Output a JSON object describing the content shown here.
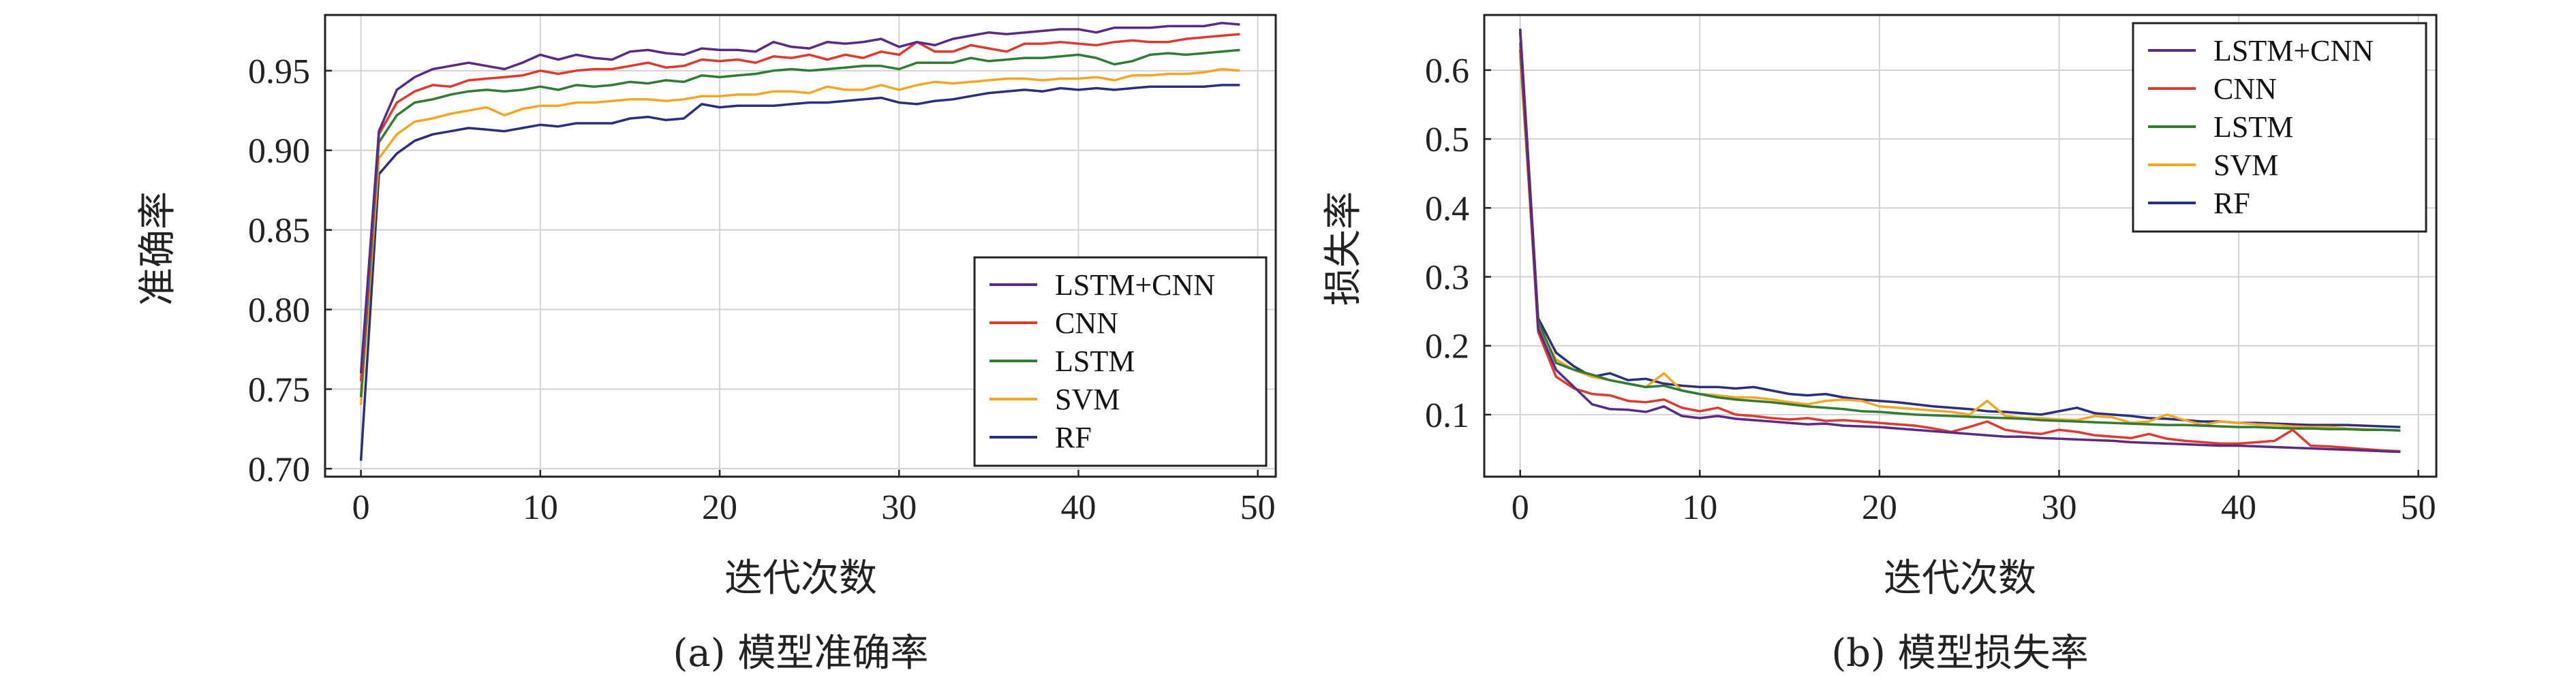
{
  "chart_data": [
    {
      "type": "line",
      "caption": "(a) 模型准确率",
      "xlabel": "迭代次数",
      "ylabel": "准确率",
      "xlim": [
        -2,
        51
      ],
      "ylim": [
        0.695,
        0.985
      ],
      "xticks": [
        0,
        10,
        20,
        30,
        40,
        50
      ],
      "xtick_labels": [
        "0",
        "10",
        "20",
        "30",
        "40",
        "50"
      ],
      "yticks": [
        0.7,
        0.75,
        0.8,
        0.85,
        0.9,
        0.95
      ],
      "ytick_labels": [
        "0.70",
        "0.75",
        "0.80",
        "0.85",
        "0.90",
        "0.95"
      ],
      "grid": true,
      "legend_position": "lower-right",
      "x": [
        0,
        1,
        2,
        3,
        4,
        5,
        6,
        7,
        8,
        9,
        10,
        11,
        12,
        13,
        14,
        15,
        16,
        17,
        18,
        19,
        20,
        21,
        22,
        23,
        24,
        25,
        26,
        27,
        28,
        29,
        30,
        31,
        32,
        33,
        34,
        35,
        36,
        37,
        38,
        39,
        40,
        41,
        42,
        43,
        44,
        45,
        46,
        47,
        48,
        49
      ],
      "series": [
        {
          "name": "LSTM+CNN",
          "color": "#5b2a86",
          "values": [
            0.76,
            0.912,
            0.938,
            0.946,
            0.951,
            0.953,
            0.955,
            0.953,
            0.951,
            0.955,
            0.96,
            0.957,
            0.96,
            0.958,
            0.957,
            0.962,
            0.963,
            0.961,
            0.96,
            0.964,
            0.963,
            0.963,
            0.962,
            0.968,
            0.965,
            0.964,
            0.968,
            0.967,
            0.968,
            0.97,
            0.965,
            0.968,
            0.966,
            0.97,
            0.972,
            0.974,
            0.973,
            0.974,
            0.975,
            0.976,
            0.976,
            0.974,
            0.977,
            0.977,
            0.977,
            0.978,
            0.978,
            0.978,
            0.98,
            0.979
          ]
        },
        {
          "name": "CNN",
          "color": "#e03a2f",
          "values": [
            0.755,
            0.91,
            0.93,
            0.937,
            0.941,
            0.94,
            0.944,
            0.945,
            0.946,
            0.947,
            0.95,
            0.948,
            0.95,
            0.951,
            0.951,
            0.953,
            0.955,
            0.952,
            0.953,
            0.957,
            0.956,
            0.957,
            0.955,
            0.959,
            0.958,
            0.96,
            0.957,
            0.96,
            0.958,
            0.962,
            0.96,
            0.968,
            0.962,
            0.962,
            0.966,
            0.964,
            0.962,
            0.967,
            0.967,
            0.968,
            0.967,
            0.966,
            0.968,
            0.969,
            0.968,
            0.968,
            0.97,
            0.971,
            0.972,
            0.973
          ]
        },
        {
          "name": "LSTM",
          "color": "#2e7d32",
          "values": [
            0.745,
            0.905,
            0.922,
            0.93,
            0.932,
            0.935,
            0.937,
            0.938,
            0.937,
            0.938,
            0.94,
            0.938,
            0.941,
            0.94,
            0.941,
            0.943,
            0.942,
            0.944,
            0.943,
            0.947,
            0.946,
            0.947,
            0.948,
            0.95,
            0.951,
            0.95,
            0.951,
            0.952,
            0.953,
            0.953,
            0.951,
            0.955,
            0.955,
            0.955,
            0.958,
            0.956,
            0.957,
            0.958,
            0.958,
            0.959,
            0.96,
            0.958,
            0.954,
            0.956,
            0.96,
            0.961,
            0.96,
            0.961,
            0.962,
            0.963
          ]
        },
        {
          "name": "SVM",
          "color": "#f5a623",
          "values": [
            0.74,
            0.895,
            0.91,
            0.918,
            0.92,
            0.923,
            0.925,
            0.927,
            0.922,
            0.926,
            0.928,
            0.928,
            0.93,
            0.93,
            0.931,
            0.932,
            0.932,
            0.931,
            0.932,
            0.934,
            0.934,
            0.935,
            0.935,
            0.937,
            0.937,
            0.936,
            0.94,
            0.938,
            0.938,
            0.941,
            0.938,
            0.941,
            0.943,
            0.942,
            0.943,
            0.944,
            0.945,
            0.945,
            0.944,
            0.945,
            0.945,
            0.946,
            0.944,
            0.947,
            0.947,
            0.948,
            0.948,
            0.949,
            0.951,
            0.95
          ]
        },
        {
          "name": "RF",
          "color": "#2b2f7e",
          "values": [
            0.705,
            0.885,
            0.898,
            0.906,
            0.91,
            0.912,
            0.914,
            0.913,
            0.912,
            0.914,
            0.916,
            0.915,
            0.917,
            0.917,
            0.917,
            0.92,
            0.921,
            0.919,
            0.92,
            0.929,
            0.927,
            0.928,
            0.928,
            0.928,
            0.929,
            0.93,
            0.93,
            0.931,
            0.932,
            0.933,
            0.93,
            0.929,
            0.931,
            0.932,
            0.934,
            0.936,
            0.937,
            0.938,
            0.937,
            0.939,
            0.938,
            0.939,
            0.938,
            0.939,
            0.94,
            0.94,
            0.94,
            0.94,
            0.941,
            0.941
          ]
        }
      ]
    },
    {
      "type": "line",
      "caption": "(b) 模型损失率",
      "xlabel": "迭代次数",
      "ylabel": "损失率",
      "xlim": [
        -2,
        51
      ],
      "ylim": [
        0.01,
        0.68
      ],
      "xticks": [
        0,
        10,
        20,
        30,
        40,
        50
      ],
      "xtick_labels": [
        "0",
        "10",
        "20",
        "30",
        "40",
        "50"
      ],
      "yticks": [
        0.1,
        0.2,
        0.3,
        0.4,
        0.5,
        0.6
      ],
      "ytick_labels": [
        "0.1",
        "0.2",
        "0.3",
        "0.4",
        "0.5",
        "0.6"
      ],
      "grid": true,
      "legend_position": "upper-right",
      "x": [
        0,
        1,
        2,
        3,
        4,
        5,
        6,
        7,
        8,
        9,
        10,
        11,
        12,
        13,
        14,
        15,
        16,
        17,
        18,
        19,
        20,
        21,
        22,
        23,
        24,
        25,
        26,
        27,
        28,
        29,
        30,
        31,
        32,
        33,
        34,
        35,
        36,
        37,
        38,
        39,
        40,
        41,
        42,
        43,
        44,
        45,
        46,
        47,
        48,
        49
      ],
      "series": [
        {
          "name": "LSTM+CNN",
          "color": "#5b2a86",
          "values": [
            0.655,
            0.225,
            0.165,
            0.14,
            0.115,
            0.108,
            0.107,
            0.104,
            0.112,
            0.098,
            0.095,
            0.098,
            0.094,
            0.092,
            0.09,
            0.088,
            0.086,
            0.087,
            0.084,
            0.083,
            0.082,
            0.08,
            0.078,
            0.076,
            0.074,
            0.072,
            0.07,
            0.068,
            0.068,
            0.066,
            0.065,
            0.064,
            0.063,
            0.062,
            0.06,
            0.059,
            0.058,
            0.057,
            0.056,
            0.055,
            0.055,
            0.054,
            0.053,
            0.052,
            0.051,
            0.05,
            0.049,
            0.048,
            0.047,
            0.046
          ]
        },
        {
          "name": "CNN",
          "color": "#e03a2f",
          "values": [
            0.64,
            0.22,
            0.155,
            0.138,
            0.13,
            0.128,
            0.12,
            0.118,
            0.122,
            0.11,
            0.105,
            0.11,
            0.1,
            0.098,
            0.095,
            0.093,
            0.095,
            0.091,
            0.092,
            0.09,
            0.088,
            0.086,
            0.084,
            0.08,
            0.075,
            0.082,
            0.09,
            0.078,
            0.074,
            0.072,
            0.078,
            0.075,
            0.07,
            0.068,
            0.066,
            0.072,
            0.065,
            0.062,
            0.06,
            0.058,
            0.058,
            0.06,
            0.062,
            0.078,
            0.055,
            0.054,
            0.052,
            0.05,
            0.048,
            0.047
          ]
        },
        {
          "name": "LSTM",
          "color": "#2e7d32",
          "values": [
            0.63,
            0.235,
            0.175,
            0.165,
            0.158,
            0.15,
            0.145,
            0.14,
            0.142,
            0.135,
            0.13,
            0.125,
            0.122,
            0.12,
            0.118,
            0.115,
            0.112,
            0.11,
            0.108,
            0.105,
            0.104,
            0.102,
            0.1,
            0.099,
            0.098,
            0.097,
            0.096,
            0.095,
            0.094,
            0.092,
            0.091,
            0.09,
            0.089,
            0.088,
            0.087,
            0.086,
            0.085,
            0.085,
            0.084,
            0.083,
            0.082,
            0.082,
            0.081,
            0.08,
            0.08,
            0.079,
            0.079,
            0.078,
            0.078,
            0.077
          ]
        },
        {
          "name": "SVM",
          "color": "#f5a623",
          "values": [
            0.62,
            0.23,
            0.18,
            0.165,
            0.155,
            0.15,
            0.145,
            0.14,
            0.16,
            0.135,
            0.13,
            0.128,
            0.125,
            0.125,
            0.122,
            0.118,
            0.115,
            0.12,
            0.122,
            0.12,
            0.112,
            0.11,
            0.108,
            0.106,
            0.104,
            0.1,
            0.12,
            0.098,
            0.095,
            0.095,
            0.093,
            0.092,
            0.098,
            0.096,
            0.088,
            0.09,
            0.1,
            0.092,
            0.085,
            0.09,
            0.088,
            0.086,
            0.085,
            0.083,
            0.082,
            0.082,
            0.08,
            0.079,
            0.078,
            0.077
          ]
        },
        {
          "name": "RF",
          "color": "#2b2f7e",
          "values": [
            0.66,
            0.24,
            0.19,
            0.17,
            0.155,
            0.16,
            0.15,
            0.152,
            0.145,
            0.142,
            0.14,
            0.14,
            0.138,
            0.14,
            0.135,
            0.13,
            0.128,
            0.13,
            0.125,
            0.122,
            0.12,
            0.118,
            0.115,
            0.112,
            0.11,
            0.108,
            0.105,
            0.104,
            0.102,
            0.1,
            0.105,
            0.11,
            0.102,
            0.1,
            0.098,
            0.095,
            0.094,
            0.092,
            0.09,
            0.09,
            0.088,
            0.088,
            0.087,
            0.086,
            0.085,
            0.085,
            0.085,
            0.084,
            0.083,
            0.082
          ]
        }
      ]
    }
  ]
}
